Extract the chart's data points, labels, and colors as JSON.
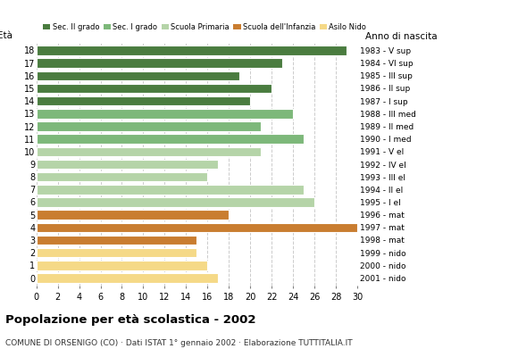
{
  "ages": [
    18,
    17,
    16,
    15,
    14,
    13,
    12,
    11,
    10,
    9,
    8,
    7,
    6,
    5,
    4,
    3,
    2,
    1,
    0
  ],
  "values": [
    29,
    23,
    19,
    22,
    20,
    24,
    21,
    25,
    21,
    17,
    16,
    25,
    26,
    18,
    30,
    15,
    15,
    16,
    17
  ],
  "colors": [
    "#4a7c3f",
    "#4a7c3f",
    "#4a7c3f",
    "#4a7c3f",
    "#4a7c3f",
    "#7db87a",
    "#7db87a",
    "#7db87a",
    "#b5d4a8",
    "#b5d4a8",
    "#b5d4a8",
    "#b5d4a8",
    "#b5d4a8",
    "#c97d30",
    "#c97d30",
    "#c97d30",
    "#f5d987",
    "#f5d987",
    "#f5d987"
  ],
  "right_labels": [
    "1983 - V sup",
    "1984 - VI sup",
    "1985 - III sup",
    "1986 - II sup",
    "1987 - I sup",
    "1988 - III med",
    "1989 - II med",
    "1990 - I med",
    "1991 - V el",
    "1992 - IV el",
    "1993 - III el",
    "1994 - II el",
    "1995 - I el",
    "1996 - mat",
    "1997 - mat",
    "1998 - mat",
    "1999 - nido",
    "2000 - nido",
    "2001 - nido"
  ],
  "legend_labels": [
    "Sec. II grado",
    "Sec. I grado",
    "Scuola Primaria",
    "Scuola dell'Infanzia",
    "Asilo Nido"
  ],
  "legend_colors": [
    "#4a7c3f",
    "#7db87a",
    "#b5d4a8",
    "#c97d30",
    "#f5d987"
  ],
  "ylabel": "Età",
  "ylabel2": "Anno di nascita",
  "title": "Popolazione per età scolastica - 2002",
  "subtitle": "COMUNE DI ORSENIGO (CO) · Dati ISTAT 1° gennaio 2002 · Elaborazione TUTTITALIA.IT",
  "xlim": [
    0,
    30
  ],
  "xticks": [
    0,
    2,
    4,
    6,
    8,
    10,
    12,
    14,
    16,
    18,
    20,
    22,
    24,
    26,
    28,
    30
  ],
  "background_color": "#ffffff",
  "grid_color": "#cccccc"
}
